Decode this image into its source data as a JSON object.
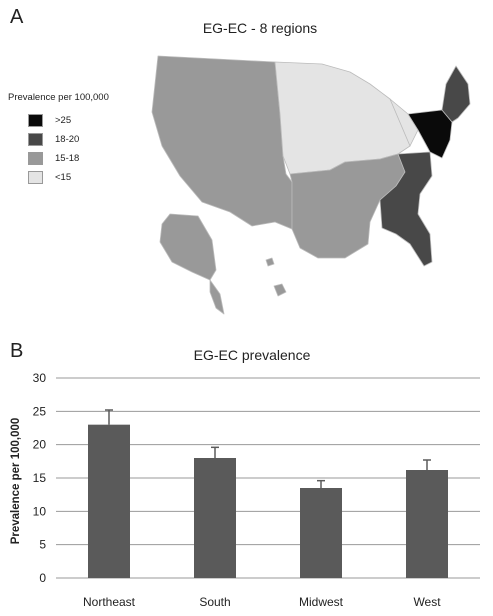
{
  "panel_a": {
    "letter": "A",
    "title": "EG-EC - 8 regions",
    "legend": {
      "title": "Prevalence per 100,000",
      "items": [
        {
          "label": ">25",
          "color": "#0a0a0a"
        },
        {
          "label": "18-20",
          "color": "#484848"
        },
        {
          "label": "15-18",
          "color": "#999999"
        },
        {
          "label": "<15",
          "color": "#e4e4e4"
        }
      ]
    },
    "border_color": "#bbbbbb"
  },
  "panel_b": {
    "letter": "B"
  },
  "chart_data": {
    "type": "bar",
    "title": "EG-EC prevalence",
    "xlabel": "",
    "ylabel": "Prevalence per 100,000",
    "categories": [
      "Northeast",
      "South",
      "Midwest",
      "West"
    ],
    "values": [
      23,
      18,
      13.5,
      16.2
    ],
    "errors": [
      2.2,
      1.6,
      1.1,
      1.5
    ],
    "ylim": [
      0,
      30
    ],
    "yticks": [
      0,
      5,
      10,
      15,
      20,
      25,
      30
    ],
    "grid": true,
    "bar_color": "#5a5a5a",
    "grid_color": "#9a9a9a"
  }
}
